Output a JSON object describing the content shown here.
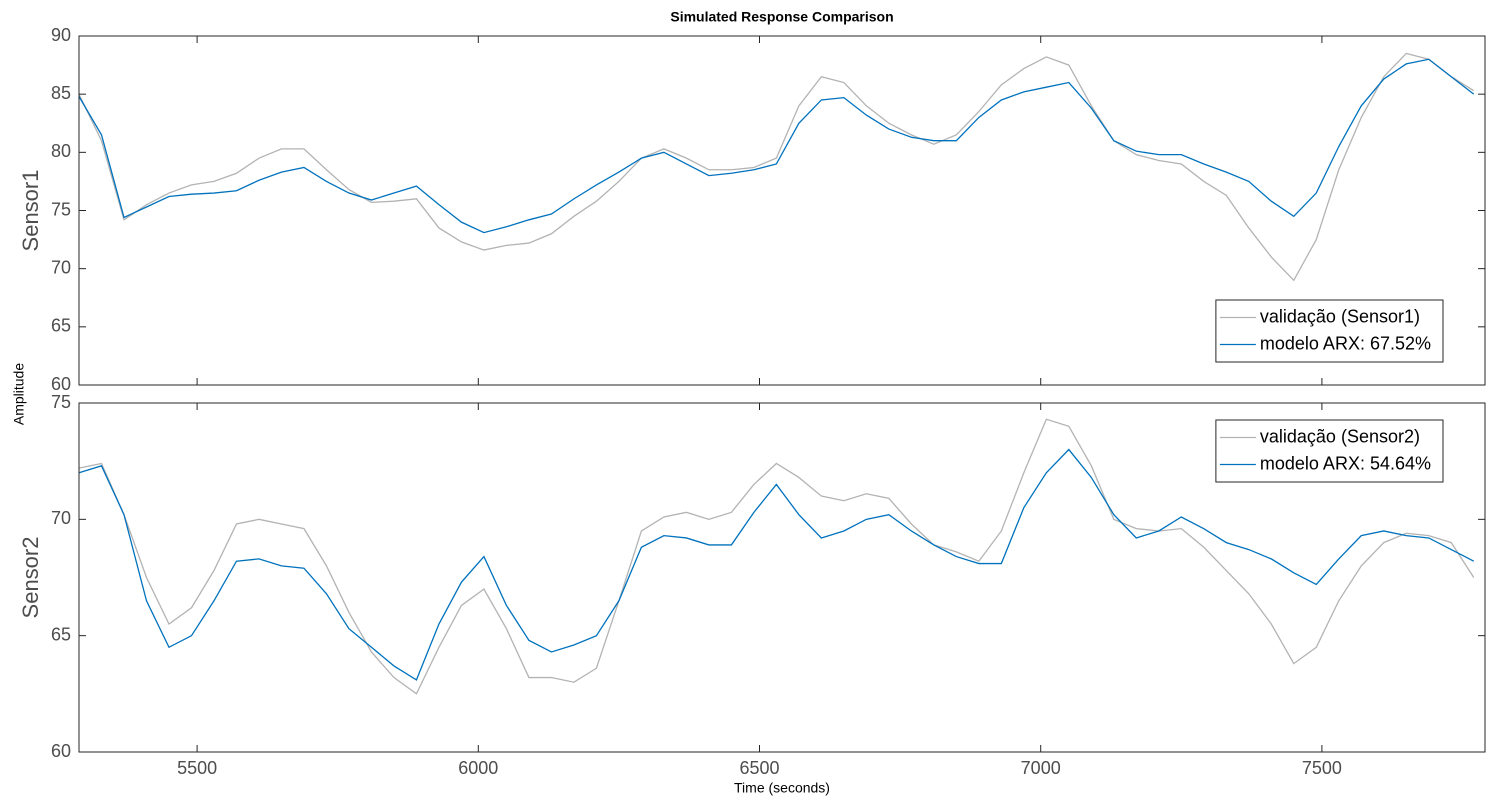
{
  "figure": {
    "title": "Simulated Response Comparison",
    "ylabel": "Amplitude",
    "xlabel": "Time (seconds)"
  },
  "chart_data": [
    {
      "type": "line",
      "ylabel": "Sensor1",
      "legend": "southeast",
      "xlim": [
        5290,
        7790
      ],
      "xticks": [
        5500,
        6000,
        6500,
        7000,
        7500
      ],
      "show_xtick_labels": false,
      "ylim": [
        60,
        90
      ],
      "yticks": [
        60,
        65,
        70,
        75,
        80,
        85,
        90
      ],
      "x": [
        5290,
        5330,
        5370,
        5410,
        5450,
        5490,
        5530,
        5570,
        5610,
        5650,
        5690,
        5730,
        5770,
        5810,
        5850,
        5890,
        5930,
        5970,
        6010,
        6050,
        6090,
        6130,
        6170,
        6210,
        6250,
        6290,
        6330,
        6370,
        6410,
        6450,
        6490,
        6530,
        6570,
        6610,
        6650,
        6690,
        6730,
        6770,
        6810,
        6850,
        6890,
        6930,
        6970,
        7010,
        7050,
        7090,
        7130,
        7170,
        7210,
        7250,
        7290,
        7330,
        7370,
        7410,
        7450,
        7490,
        7530,
        7570,
        7610,
        7650,
        7690,
        7730,
        7770
      ],
      "series": [
        {
          "name": "validação (Sensor1)",
          "color": "#b3b3b3",
          "values": [
            85,
            81,
            74.2,
            75.5,
            76.5,
            77.2,
            77.5,
            78.2,
            79.5,
            80.3,
            80.3,
            78.5,
            76.8,
            75.7,
            75.8,
            76.0,
            73.5,
            72.3,
            71.6,
            72.0,
            72.2,
            73.0,
            74.5,
            75.8,
            77.5,
            79.5,
            80.3,
            79.5,
            78.5,
            78.5,
            78.7,
            79.5,
            84.0,
            86.5,
            86.0,
            84.0,
            82.5,
            81.5,
            80.7,
            81.5,
            83.5,
            85.8,
            87.2,
            88.2,
            87.5,
            84.0,
            81.0,
            79.8,
            79.3,
            79.0,
            77.5,
            76.3,
            73.5,
            71.0,
            69.0,
            72.5,
            78.5,
            83.0,
            86.5,
            88.5,
            88.0,
            86.5,
            85.3
          ]
        },
        {
          "name": "modelo ARX: 67.52%",
          "color": "#0072bd",
          "values": [
            84.8,
            81.5,
            74.4,
            75.3,
            76.2,
            76.4,
            76.5,
            76.7,
            77.6,
            78.3,
            78.7,
            77.5,
            76.5,
            75.9,
            76.5,
            77.1,
            75.5,
            74.0,
            73.1,
            73.6,
            74.2,
            74.7,
            76.0,
            77.2,
            78.3,
            79.5,
            80.0,
            79.0,
            78.0,
            78.2,
            78.5,
            79.0,
            82.5,
            84.5,
            84.7,
            83.2,
            82.0,
            81.3,
            81.0,
            81.0,
            83.0,
            84.5,
            85.2,
            85.6,
            86.0,
            83.8,
            81.0,
            80.1,
            79.8,
            79.8,
            79.0,
            78.3,
            77.5,
            75.8,
            74.5,
            76.5,
            80.5,
            84.0,
            86.3,
            87.6,
            88.0,
            86.5,
            85.0
          ]
        }
      ]
    },
    {
      "type": "line",
      "ylabel": "Sensor2",
      "legend": "northeast",
      "xlim": [
        5290,
        7790
      ],
      "xticks": [
        5500,
        6000,
        6500,
        7000,
        7500
      ],
      "show_xtick_labels": true,
      "ylim": [
        60,
        75
      ],
      "yticks": [
        60,
        65,
        70,
        75
      ],
      "x": [
        5290,
        5330,
        5370,
        5410,
        5450,
        5490,
        5530,
        5570,
        5610,
        5650,
        5690,
        5730,
        5770,
        5810,
        5850,
        5890,
        5930,
        5970,
        6010,
        6050,
        6090,
        6130,
        6170,
        6210,
        6250,
        6290,
        6330,
        6370,
        6410,
        6450,
        6490,
        6530,
        6570,
        6610,
        6650,
        6690,
        6730,
        6770,
        6810,
        6850,
        6890,
        6930,
        6970,
        7010,
        7050,
        7090,
        7130,
        7170,
        7210,
        7250,
        7290,
        7330,
        7370,
        7410,
        7450,
        7490,
        7530,
        7570,
        7610,
        7650,
        7690,
        7730,
        7770
      ],
      "series": [
        {
          "name": "validação (Sensor2)",
          "color": "#b3b3b3",
          "values": [
            72.2,
            72.4,
            70.2,
            67.5,
            65.5,
            66.2,
            67.8,
            69.8,
            70.0,
            69.8,
            69.6,
            68.0,
            66.0,
            64.3,
            63.2,
            62.5,
            64.5,
            66.3,
            67.0,
            65.3,
            63.2,
            63.2,
            63.0,
            63.6,
            66.5,
            69.5,
            70.1,
            70.3,
            70.0,
            70.3,
            71.5,
            72.4,
            71.8,
            71.0,
            70.8,
            71.1,
            70.9,
            69.8,
            68.9,
            68.6,
            68.2,
            69.5,
            72.0,
            74.3,
            74.0,
            72.3,
            70.0,
            69.6,
            69.5,
            69.6,
            68.8,
            67.8,
            66.8,
            65.5,
            63.8,
            64.5,
            66.5,
            68.0,
            69.0,
            69.4,
            69.3,
            69.0,
            67.5
          ]
        },
        {
          "name": "modelo ARX: 54.64%",
          "color": "#0072bd",
          "values": [
            72.0,
            72.3,
            70.2,
            66.5,
            64.5,
            65.0,
            66.5,
            68.2,
            68.3,
            68.0,
            67.9,
            66.8,
            65.3,
            64.5,
            63.7,
            63.1,
            65.5,
            67.3,
            68.4,
            66.3,
            64.8,
            64.3,
            64.6,
            65.0,
            66.5,
            68.8,
            69.3,
            69.2,
            68.9,
            68.9,
            70.3,
            71.5,
            70.2,
            69.2,
            69.5,
            70.0,
            70.2,
            69.5,
            68.9,
            68.4,
            68.1,
            68.1,
            70.5,
            72.0,
            73.0,
            71.8,
            70.2,
            69.2,
            69.5,
            70.1,
            69.6,
            69.0,
            68.7,
            68.3,
            67.7,
            67.2,
            68.3,
            69.3,
            69.5,
            69.3,
            69.2,
            68.7,
            68.2
          ]
        }
      ]
    }
  ]
}
